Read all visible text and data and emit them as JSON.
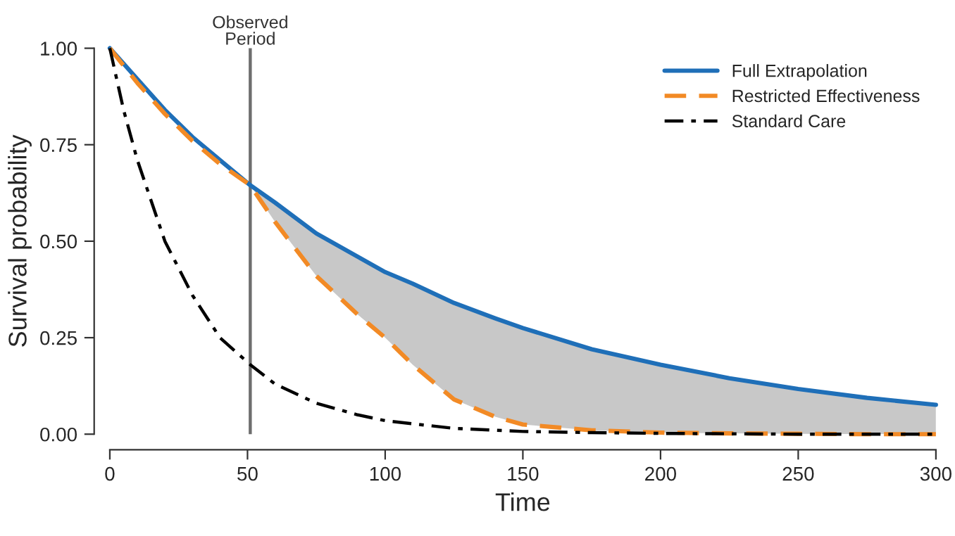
{
  "chart_data": {
    "type": "line",
    "xlabel": "Time",
    "ylabel": "Survival probability",
    "xlim": [
      0,
      300
    ],
    "xticks": [
      0,
      50,
      100,
      150,
      200,
      250,
      300
    ],
    "ylim": [
      0,
      1
    ],
    "yticks": [
      {
        "value": 0,
        "label": "0.00"
      },
      {
        "value": 0.25,
        "label": "0.25"
      },
      {
        "value": 0.5,
        "label": "0.50"
      },
      {
        "value": 0.75,
        "label": "0.75"
      },
      {
        "value": 1,
        "label": "1.00"
      }
    ],
    "grid": false,
    "legend": "top right",
    "marker": "none",
    "ref_lines": [
      {
        "axis": "x",
        "value": 51,
        "label": "Observed\nPeriod",
        "color": "#6e6e6e",
        "line_style": "solid"
      }
    ],
    "series": [
      {
        "name": "Full Extrapolation",
        "color": "#1f6fb8",
        "line_style": "solid",
        "x": [
          0,
          10,
          20,
          30,
          40,
          51,
          60,
          75,
          90,
          100,
          110,
          125,
          140,
          150,
          175,
          200,
          225,
          250,
          275,
          300
        ],
        "values": [
          1,
          0.92,
          0.84,
          0.77,
          0.71,
          0.645,
          0.6,
          0.52,
          0.46,
          0.42,
          0.39,
          0.34,
          0.3,
          0.275,
          0.22,
          0.18,
          0.145,
          0.117,
          0.094,
          0.076
        ],
        "lower": [
          null,
          null,
          null,
          null,
          null,
          0.645,
          0.55,
          0.41,
          0.31,
          0.25,
          0.18,
          0.09,
          0.045,
          0.025,
          0.01,
          0.004,
          0.002,
          0.001,
          0,
          0
        ],
        "upper": [
          null,
          null,
          null,
          null,
          null,
          0.645,
          0.6,
          0.52,
          0.46,
          0.42,
          0.39,
          0.34,
          0.3,
          0.275,
          0.22,
          0.18,
          0.145,
          0.117,
          0.094,
          0.076
        ]
      },
      {
        "name": "Restricted Effectiveness",
        "color": "#f28a25",
        "line_style": "dashed",
        "x": [
          0,
          10,
          20,
          30,
          40,
          51,
          60,
          75,
          90,
          100,
          110,
          125,
          140,
          150,
          175,
          200,
          225,
          250,
          275,
          300
        ],
        "values": [
          1,
          0.91,
          0.83,
          0.76,
          0.7,
          0.645,
          0.55,
          0.41,
          0.31,
          0.25,
          0.18,
          0.09,
          0.045,
          0.025,
          0.01,
          0.004,
          0.002,
          0.001,
          0,
          0
        ]
      },
      {
        "name": "Standard Care",
        "color": "#000000",
        "line_style": "dashdot",
        "x": [
          0,
          5,
          10,
          20,
          30,
          40,
          51,
          60,
          75,
          90,
          100,
          125,
          150,
          175,
          200,
          250,
          300
        ],
        "values": [
          1,
          0.84,
          0.71,
          0.5,
          0.36,
          0.25,
          0.18,
          0.13,
          0.08,
          0.05,
          0.035,
          0.015,
          0.007,
          0.004,
          0.002,
          0,
          0
        ]
      }
    ]
  }
}
